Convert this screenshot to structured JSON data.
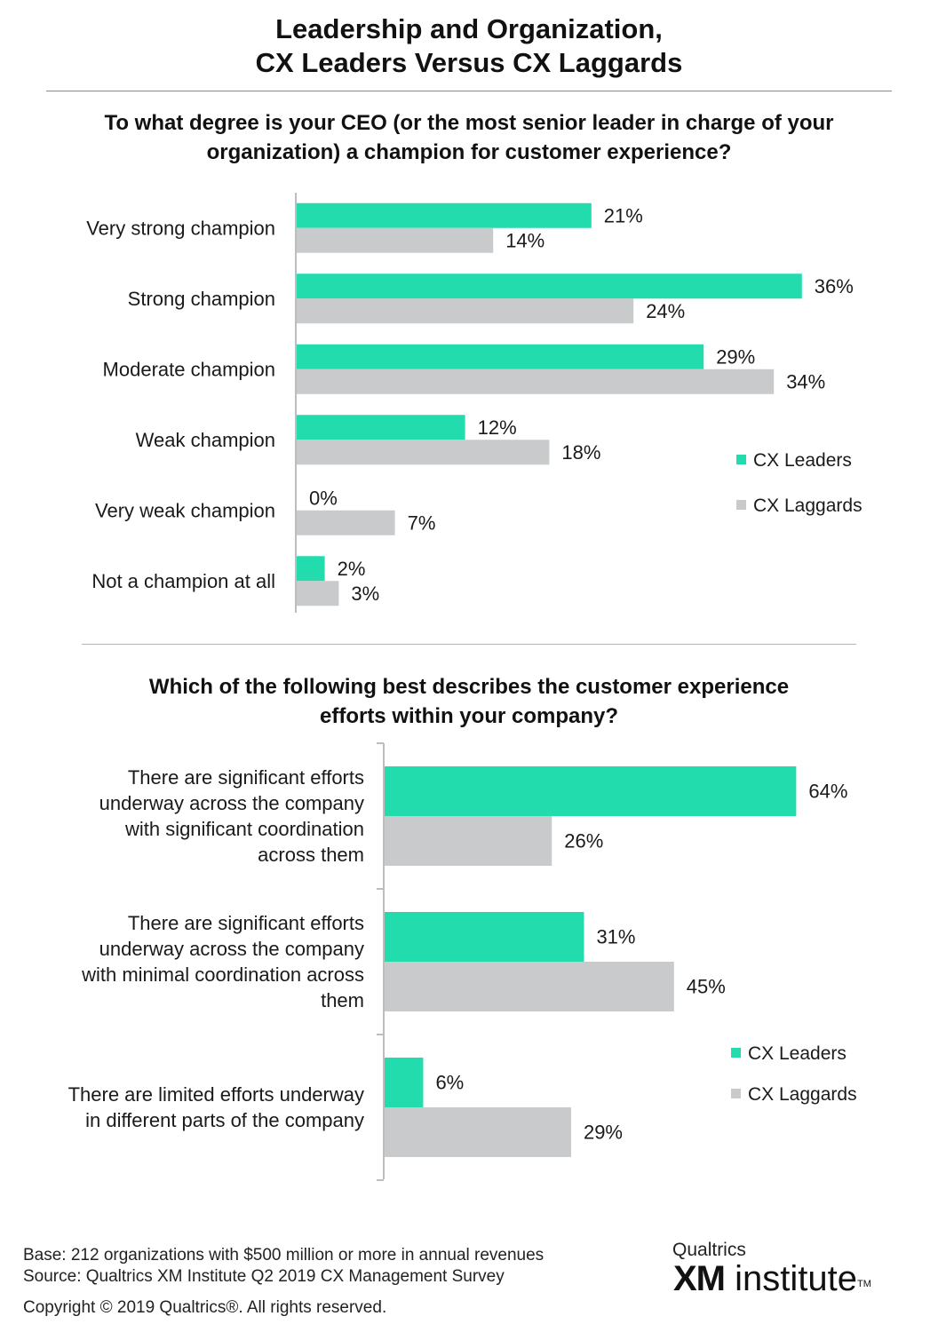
{
  "title_line1": "Leadership and Organization,",
  "title_line2": "CX Leaders Versus CX Laggards",
  "colors": {
    "leaders": "#23dcad",
    "laggards": "#c8cacc",
    "axis": "#bdbdbd",
    "text": "#1a1a1a"
  },
  "chart_data": [
    {
      "type": "bar",
      "orientation": "horizontal",
      "title": "To what degree is your CEO (or the most senior leader in charge of your organization) a champion for customer experience?",
      "title_lines": [
        "To what degree is your CEO (or the most senior leader in charge of your",
        "organization) a champion for customer experience?"
      ],
      "categories": [
        [
          "Very strong champion"
        ],
        [
          "Strong champion"
        ],
        [
          "Moderate champion"
        ],
        [
          "Weak champion"
        ],
        [
          "Very weak champion"
        ],
        [
          "Not a champion at all"
        ]
      ],
      "series": [
        {
          "name": "CX Leaders",
          "values": [
            21,
            36,
            29,
            12,
            0,
            2
          ]
        },
        {
          "name": "CX Laggards",
          "values": [
            14,
            24,
            34,
            18,
            7,
            3
          ]
        }
      ],
      "value_suffix": "%",
      "legend_position": "right",
      "grid": false
    },
    {
      "type": "bar",
      "orientation": "horizontal",
      "title": "Which of the following best describes the customer experience efforts within your company?",
      "title_lines": [
        "Which of the following best describes the customer experience",
        "efforts within your company?"
      ],
      "categories": [
        [
          "There are significant efforts",
          "underway across the company",
          "with significant coordination",
          "across them"
        ],
        [
          "There are significant efforts",
          "underway across the company",
          "with minimal coordination across",
          "them"
        ],
        [
          "There are limited efforts underway",
          "in different parts of the company"
        ]
      ],
      "series": [
        {
          "name": "CX Leaders",
          "values": [
            64,
            31,
            6
          ]
        },
        {
          "name": "CX Laggards",
          "values": [
            26,
            45,
            29
          ]
        }
      ],
      "value_suffix": "%",
      "legend_position": "right",
      "grid": false
    }
  ],
  "footer": {
    "base": "Base: 212 organizations with $500 million or more in annual revenues",
    "source": "Source: Qualtrics XM Institute Q2 2019 CX Management Survey",
    "copyright": "Copyright © 2019 Qualtrics®.  All rights reserved."
  },
  "logo": {
    "brand": "Qualtrics",
    "xm": "XM",
    "word": " institute",
    "tm": "TM"
  }
}
